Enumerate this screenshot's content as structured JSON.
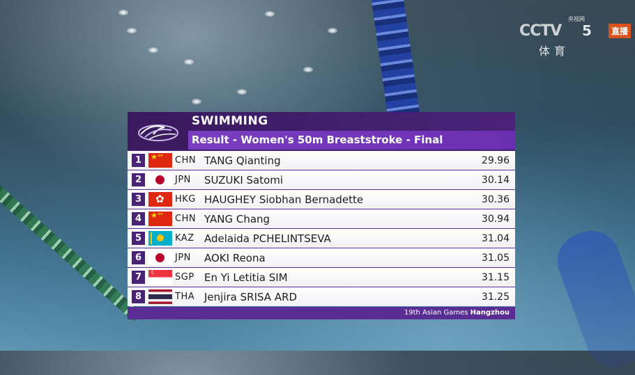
{
  "broadcaster": {
    "logo": "CCTV",
    "channel_number": "5",
    "channel_name": "体育",
    "live_label": "直播",
    "sub_label": "央视网",
    "live_color": "#d9531e"
  },
  "board": {
    "sport": "SWIMMING",
    "event": "Result - Women's 50m Breaststroke - Final",
    "emblem_icon": "asian-games-emblem-icon",
    "footer_event": "19th Asian Games",
    "footer_city": "Hangzhou",
    "colors": {
      "header_dark": "#3c1a60",
      "header_light": "#7a3fc0",
      "rank_box": "#4a2378"
    }
  },
  "results": [
    {
      "rank": "1",
      "noc": "CHN",
      "flag": "flag-china-icon",
      "name": "TANG Qianting",
      "time": "29.96"
    },
    {
      "rank": "2",
      "noc": "JPN",
      "flag": "flag-japan-icon",
      "name": "SUZUKI Satomi",
      "time": "30.14"
    },
    {
      "rank": "3",
      "noc": "HKG",
      "flag": "flag-hong-kong-icon",
      "name": "HAUGHEY Siobhan Bernadette",
      "time": "30.36"
    },
    {
      "rank": "4",
      "noc": "CHN",
      "flag": "flag-china-icon",
      "name": "YANG Chang",
      "time": "30.94"
    },
    {
      "rank": "5",
      "noc": "KAZ",
      "flag": "flag-kazakhstan-icon",
      "name": "Adelaida PCHELINTSEVA",
      "time": "31.04"
    },
    {
      "rank": "6",
      "noc": "JPN",
      "flag": "flag-japan-icon",
      "name": "AOKI Reona",
      "time": "31.05"
    },
    {
      "rank": "7",
      "noc": "SGP",
      "flag": "flag-singapore-icon",
      "name": "En Yi Letitia SIM",
      "time": "31.15"
    },
    {
      "rank": "8",
      "noc": "THA",
      "flag": "flag-thailand-icon",
      "name": "Jenjira SRISA ARD",
      "time": "31.25"
    }
  ]
}
